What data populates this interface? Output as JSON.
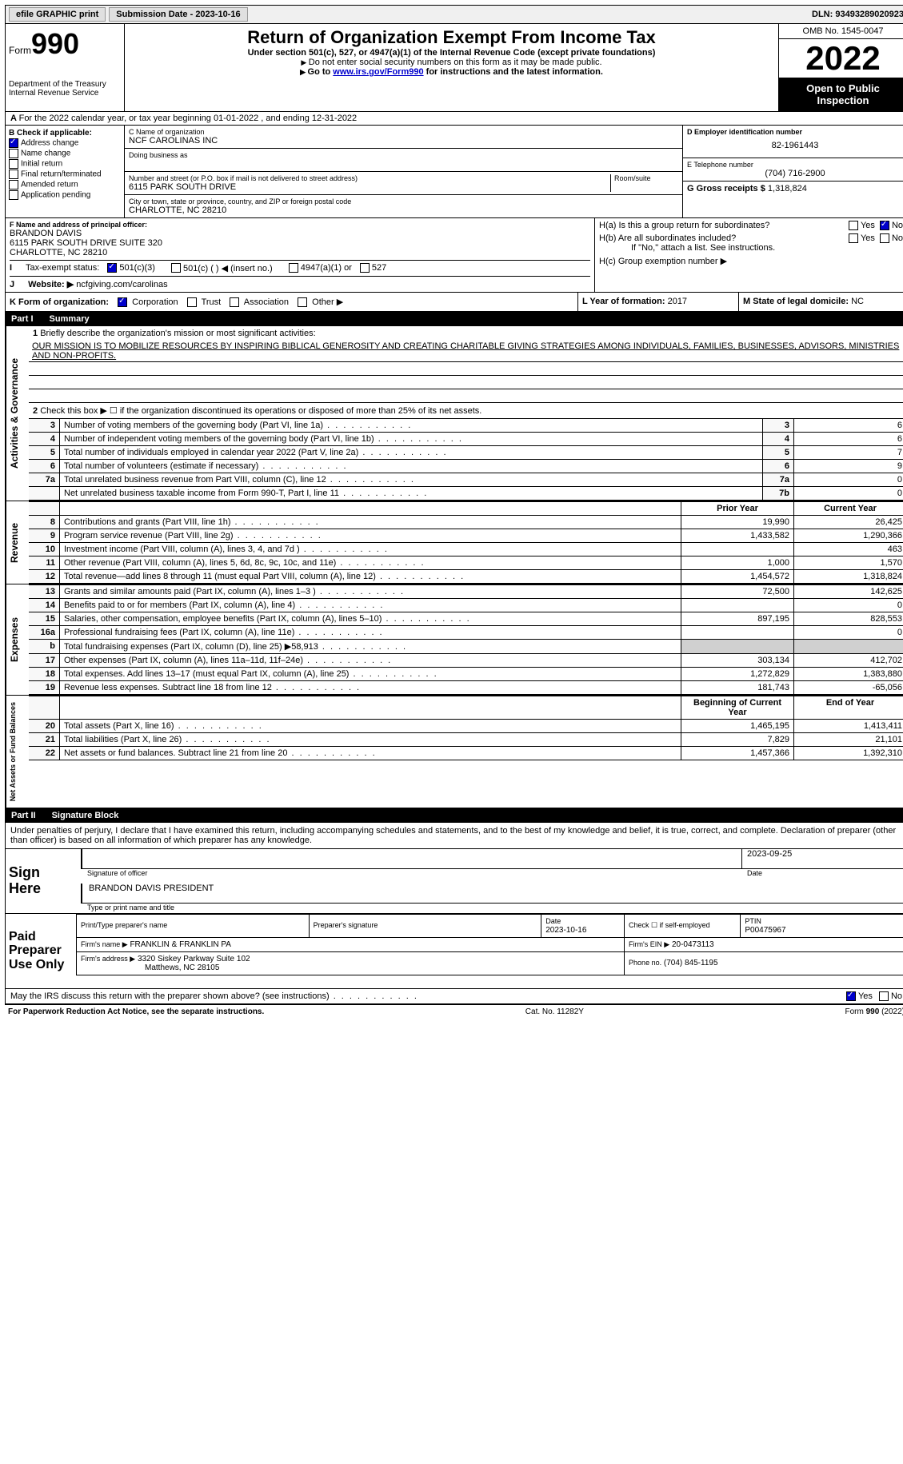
{
  "topbar": {
    "efile": "efile GRAPHIC print",
    "submission": "Submission Date - 2023-10-16",
    "dln": "DLN: 93493289020923"
  },
  "header": {
    "form_label": "Form",
    "form_num": "990",
    "dept": "Department of the Treasury",
    "irs": "Internal Revenue Service",
    "title": "Return of Organization Exempt From Income Tax",
    "subtitle": "Under section 501(c), 527, or 4947(a)(1) of the Internal Revenue Code (except private foundations)",
    "note1": "Do not enter social security numbers on this form as it may be made public.",
    "note2_pre": "Go to ",
    "note2_link": "www.irs.gov/Form990",
    "note2_post": " for instructions and the latest information.",
    "omb": "OMB No. 1545-0047",
    "year": "2022",
    "inspect": "Open to Public Inspection"
  },
  "period": {
    "line": "For the 2022 calendar year, or tax year beginning 01-01-2022    , and ending 12-31-2022"
  },
  "boxB": {
    "label": "B Check if applicable:",
    "items": [
      "Address change",
      "Name change",
      "Initial return",
      "Final return/terminated",
      "Amended return",
      "Application pending"
    ],
    "checked_idx": 0
  },
  "boxC": {
    "name_label": "C Name of organization",
    "name": "NCF CAROLINAS INC",
    "dba_label": "Doing business as",
    "addr_label": "Number and street (or P.O. box if mail is not delivered to street address)",
    "room_label": "Room/suite",
    "addr": "6115 PARK SOUTH DRIVE",
    "city_label": "City or town, state or province, country, and ZIP or foreign postal code",
    "city": "CHARLOTTE, NC  28210"
  },
  "boxD": {
    "label": "D Employer identification number",
    "value": "82-1961443"
  },
  "boxE": {
    "label": "E Telephone number",
    "value": "(704) 716-2900"
  },
  "boxG": {
    "label": "G Gross receipts $",
    "value": "1,318,824"
  },
  "boxF": {
    "label": "F  Name and address of principal officer:",
    "name": "BRANDON DAVIS",
    "addr1": "6115 PARK SOUTH DRIVE SUITE 320",
    "addr2": "CHARLOTTE, NC  28210"
  },
  "boxH": {
    "a_label": "H(a)  Is this a group return for subordinates?",
    "b_label": "H(b)  Are all subordinates included?",
    "note": "If \"No,\" attach a list. See instructions.",
    "c_label": "H(c)  Group exemption number ▶",
    "yes": "Yes",
    "no": "No"
  },
  "boxI": {
    "label": "Tax-exempt status:",
    "opt1": "501(c)(3)",
    "opt2": "501(c) (  ) ◀ (insert no.)",
    "opt3": "4947(a)(1) or",
    "opt4": "527"
  },
  "boxJ": {
    "label": "Website: ▶",
    "value": "ncfgiving.com/carolinas"
  },
  "boxK": {
    "label": "K Form of organization:",
    "opts": [
      "Corporation",
      "Trust",
      "Association",
      "Other ▶"
    ]
  },
  "boxL": {
    "label": "L Year of formation:",
    "value": "2017"
  },
  "boxM": {
    "label": "M State of legal domicile:",
    "value": "NC"
  },
  "part1": {
    "num": "Part I",
    "title": "Summary",
    "q1": "Briefly describe the organization's mission or most significant activities:",
    "mission": "OUR MISSION IS TO MOBILIZE RESOURCES BY INSPIRING BIBLICAL GENEROSITY AND CREATING CHARITABLE GIVING STRATEGIES AMONG INDIVIDUALS, FAMILIES, BUSINESSES, ADVISORS, MINISTRIES AND NON-PROFITS.",
    "q2": "Check this box ▶ ☐ if the organization discontinued its operations or disposed of more than 25% of its net assets.",
    "vlabel1": "Activities & Governance",
    "vlabel2": "Revenue",
    "vlabel3": "Expenses",
    "vlabel4": "Net Assets or Fund Balances",
    "rows_gov": [
      {
        "n": "3",
        "label": "Number of voting members of the governing body (Part VI, line 1a)",
        "box": "3",
        "val": "6"
      },
      {
        "n": "4",
        "label": "Number of independent voting members of the governing body (Part VI, line 1b)",
        "box": "4",
        "val": "6"
      },
      {
        "n": "5",
        "label": "Total number of individuals employed in calendar year 2022 (Part V, line 2a)",
        "box": "5",
        "val": "7"
      },
      {
        "n": "6",
        "label": "Total number of volunteers (estimate if necessary)",
        "box": "6",
        "val": "9"
      },
      {
        "n": "7a",
        "label": "Total unrelated business revenue from Part VIII, column (C), line 12",
        "box": "7a",
        "val": "0"
      },
      {
        "n": "",
        "label": "Net unrelated business taxable income from Form 990-T, Part I, line 11",
        "box": "7b",
        "val": "0"
      }
    ],
    "col_prior": "Prior Year",
    "col_current": "Current Year",
    "rows_rev": [
      {
        "n": "8",
        "label": "Contributions and grants (Part VIII, line 1h)",
        "prior": "19,990",
        "curr": "26,425"
      },
      {
        "n": "9",
        "label": "Program service revenue (Part VIII, line 2g)",
        "prior": "1,433,582",
        "curr": "1,290,366"
      },
      {
        "n": "10",
        "label": "Investment income (Part VIII, column (A), lines 3, 4, and 7d )",
        "prior": "",
        "curr": "463"
      },
      {
        "n": "11",
        "label": "Other revenue (Part VIII, column (A), lines 5, 6d, 8c, 9c, 10c, and 11e)",
        "prior": "1,000",
        "curr": "1,570"
      },
      {
        "n": "12",
        "label": "Total revenue—add lines 8 through 11 (must equal Part VIII, column (A), line 12)",
        "prior": "1,454,572",
        "curr": "1,318,824"
      }
    ],
    "rows_exp": [
      {
        "n": "13",
        "label": "Grants and similar amounts paid (Part IX, column (A), lines 1–3 )",
        "prior": "72,500",
        "curr": "142,625"
      },
      {
        "n": "14",
        "label": "Benefits paid to or for members (Part IX, column (A), line 4)",
        "prior": "",
        "curr": "0"
      },
      {
        "n": "15",
        "label": "Salaries, other compensation, employee benefits (Part IX, column (A), lines 5–10)",
        "prior": "897,195",
        "curr": "828,553"
      },
      {
        "n": "16a",
        "label": "Professional fundraising fees (Part IX, column (A), line 11e)",
        "prior": "",
        "curr": "0"
      },
      {
        "n": "b",
        "label": "Total fundraising expenses (Part IX, column (D), line 25) ▶58,913",
        "prior": "SHADED",
        "curr": "SHADED"
      },
      {
        "n": "17",
        "label": "Other expenses (Part IX, column (A), lines 11a–11d, 11f–24e)",
        "prior": "303,134",
        "curr": "412,702"
      },
      {
        "n": "18",
        "label": "Total expenses. Add lines 13–17 (must equal Part IX, column (A), line 25)",
        "prior": "1,272,829",
        "curr": "1,383,880"
      },
      {
        "n": "19",
        "label": "Revenue less expenses. Subtract line 18 from line 12",
        "prior": "181,743",
        "curr": "-65,056"
      }
    ],
    "col_begin": "Beginning of Current Year",
    "col_end": "End of Year",
    "rows_net": [
      {
        "n": "20",
        "label": "Total assets (Part X, line 16)",
        "prior": "1,465,195",
        "curr": "1,413,411"
      },
      {
        "n": "21",
        "label": "Total liabilities (Part X, line 26)",
        "prior": "7,829",
        "curr": "21,101"
      },
      {
        "n": "22",
        "label": "Net assets or fund balances. Subtract line 21 from line 20",
        "prior": "1,457,366",
        "curr": "1,392,310"
      }
    ]
  },
  "part2": {
    "num": "Part II",
    "title": "Signature Block",
    "declaration": "Under penalties of perjury, I declare that I have examined this return, including accompanying schedules and statements, and to the best of my knowledge and belief, it is true, correct, and complete. Declaration of preparer (other than officer) is based on all information of which preparer has any knowledge.",
    "sign_here": "Sign Here",
    "sig_officer": "Signature of officer",
    "sig_date": "2023-09-25",
    "date_label": "Date",
    "officer_name": "BRANDON DAVIS PRESIDENT",
    "name_label": "Type or print name and title",
    "paid_prep": "Paid Preparer Use Only",
    "prep_name_label": "Print/Type preparer's name",
    "prep_sig_label": "Preparer's signature",
    "prep_date_label": "Date",
    "prep_date": "2023-10-16",
    "self_emp": "Check ☐ if self-employed",
    "ptin_label": "PTIN",
    "ptin": "P00475967",
    "firm_name_label": "Firm's name     ▶",
    "firm_name": "FRANKLIN & FRANKLIN PA",
    "firm_ein_label": "Firm's EIN ▶",
    "firm_ein": "20-0473113",
    "firm_addr_label": "Firm's address ▶",
    "firm_addr1": "3320 Siskey Parkway Suite 102",
    "firm_addr2": "Matthews, NC  28105",
    "phone_label": "Phone no.",
    "phone": "(704) 845-1195",
    "discuss": "May the IRS discuss this return with the preparer shown above? (see instructions)",
    "yes": "Yes",
    "no": "No"
  },
  "footer": {
    "left": "For Paperwork Reduction Act Notice, see the separate instructions.",
    "mid": "Cat. No. 11282Y",
    "right": "Form 990 (2022)"
  }
}
